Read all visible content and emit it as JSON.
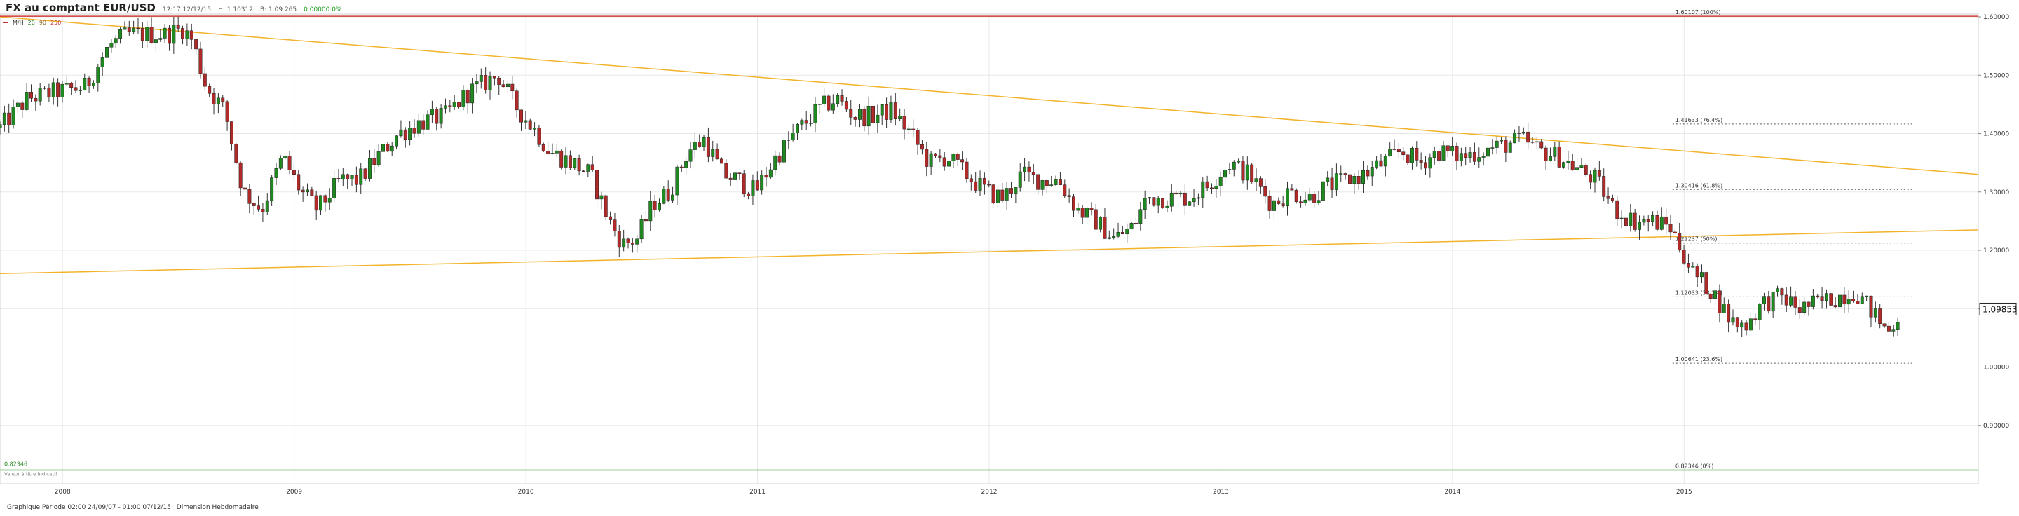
{
  "header": {
    "title": "FX au comptant EUR/USD",
    "time": "12:17 12/12/15",
    "high": "H: 1.10312",
    "bid": "B: 1.09 265",
    "change": "0.00000 0%"
  },
  "legend": {
    "label": "M/H",
    "p1": "20",
    "p2": "90",
    "p3": "250"
  },
  "footer": {
    "period": "Graphique Période 02:00 24/09/07 - 01:00 07/12/15",
    "dimension": "Dimension Hebdomadaire"
  },
  "colors": {
    "up": "#1f8a1f",
    "down": "#b02a2a",
    "trend": "#f2b32a",
    "top_line": "#d43a3a",
    "bottom_line": "#3aa23a",
    "grid": "#e8e8e8"
  },
  "chart_data": {
    "type": "candlestick",
    "title": "FX au comptant EUR/USD",
    "ylim": [
      0.8,
      1.6
    ],
    "y_ticks": [
      "1.60000",
      "1.50000",
      "1.40000",
      "1.30000",
      "1.20000",
      "1.10000",
      "1.00000",
      "0.90000"
    ],
    "x_ticks": [
      "2008",
      "2009",
      "2010",
      "2011",
      "2012",
      "2013",
      "2014",
      "2015"
    ],
    "x_ticks_year": [
      2008,
      2009,
      2010,
      2011,
      2012,
      2013,
      2014,
      2015
    ],
    "x_range": [
      2007.73,
      2016.27
    ],
    "last_price": "1.09853",
    "last_value": 1.09853,
    "fibonacci": [
      {
        "value": 1.60107,
        "label": "1.60107 (100%)",
        "start": 2014.95,
        "solid": true
      },
      {
        "value": 1.41633,
        "label": "1.41633 (76.4%)",
        "start": 2014.95
      },
      {
        "value": 1.30416,
        "label": "1.30416 (61.8%)",
        "start": 2014.95
      },
      {
        "value": 1.21237,
        "label": "1.21237 (50%)",
        "start": 2014.95
      },
      {
        "value": 1.12033,
        "label": "1.12033 (38.2%)",
        "start": 2014.95
      },
      {
        "value": 1.00641,
        "label": "1.00641 (23.6%)",
        "start": 2014.95
      },
      {
        "value": 0.82346,
        "label": "0.82346 (0%)",
        "start": 2014.95,
        "solid": true
      }
    ],
    "trendlines": [
      {
        "x1": 2007.73,
        "y1": 1.6,
        "x2": 2016.27,
        "y2": 1.33
      },
      {
        "x1": 2007.73,
        "y1": 1.16,
        "x2": 2016.27,
        "y2": 1.235
      }
    ],
    "top_line": {
      "value": 1.60107
    },
    "bottom_line": {
      "value": 0.82346,
      "label": "0.82346",
      "note": "Valeur à titre indicatif"
    },
    "path": [
      [
        2007.73,
        1.41
      ],
      [
        2007.85,
        1.46
      ],
      [
        2007.95,
        1.47
      ],
      [
        2008.1,
        1.48
      ],
      [
        2008.2,
        1.55
      ],
      [
        2008.28,
        1.57
      ],
      [
        2008.35,
        1.57
      ],
      [
        2008.45,
        1.57
      ],
      [
        2008.52,
        1.58
      ],
      [
        2008.56,
        1.56
      ],
      [
        2008.62,
        1.48
      ],
      [
        2008.7,
        1.44
      ],
      [
        2008.78,
        1.3
      ],
      [
        2008.86,
        1.27
      ],
      [
        2008.95,
        1.36
      ],
      [
        2009.03,
        1.3
      ],
      [
        2009.1,
        1.27
      ],
      [
        2009.2,
        1.32
      ],
      [
        2009.28,
        1.32
      ],
      [
        2009.36,
        1.36
      ],
      [
        2009.45,
        1.4
      ],
      [
        2009.55,
        1.42
      ],
      [
        2009.65,
        1.43
      ],
      [
        2009.75,
        1.47
      ],
      [
        2009.88,
        1.5
      ],
      [
        2009.95,
        1.45
      ],
      [
        2010.05,
        1.4
      ],
      [
        2010.1,
        1.37
      ],
      [
        2010.2,
        1.35
      ],
      [
        2010.28,
        1.33
      ],
      [
        2010.36,
        1.25
      ],
      [
        2010.42,
        1.21
      ],
      [
        2010.48,
        1.22
      ],
      [
        2010.55,
        1.28
      ],
      [
        2010.62,
        1.3
      ],
      [
        2010.7,
        1.37
      ],
      [
        2010.77,
        1.39
      ],
      [
        2010.85,
        1.33
      ],
      [
        2010.92,
        1.32
      ],
      [
        2010.99,
        1.3
      ],
      [
        2011.08,
        1.36
      ],
      [
        2011.16,
        1.4
      ],
      [
        2011.26,
        1.44
      ],
      [
        2011.34,
        1.46
      ],
      [
        2011.42,
        1.43
      ],
      [
        2011.5,
        1.43
      ],
      [
        2011.58,
        1.44
      ],
      [
        2011.66,
        1.4
      ],
      [
        2011.74,
        1.35
      ],
      [
        2011.82,
        1.36
      ],
      [
        2011.9,
        1.33
      ],
      [
        2011.99,
        1.3
      ],
      [
        2012.06,
        1.29
      ],
      [
        2012.14,
        1.33
      ],
      [
        2012.22,
        1.32
      ],
      [
        2012.3,
        1.32
      ],
      [
        2012.38,
        1.27
      ],
      [
        2012.46,
        1.25
      ],
      [
        2012.54,
        1.22
      ],
      [
        2012.62,
        1.24
      ],
      [
        2012.68,
        1.29
      ],
      [
        2012.78,
        1.29
      ],
      [
        2012.86,
        1.29
      ],
      [
        2012.94,
        1.31
      ],
      [
        2013.04,
        1.35
      ],
      [
        2013.12,
        1.33
      ],
      [
        2013.22,
        1.28
      ],
      [
        2013.3,
        1.3
      ],
      [
        2013.38,
        1.29
      ],
      [
        2013.46,
        1.31
      ],
      [
        2013.54,
        1.32
      ],
      [
        2013.62,
        1.33
      ],
      [
        2013.7,
        1.35
      ],
      [
        2013.78,
        1.37
      ],
      [
        2013.86,
        1.35
      ],
      [
        2013.94,
        1.37
      ],
      [
        2014.04,
        1.36
      ],
      [
        2014.12,
        1.37
      ],
      [
        2014.22,
        1.38
      ],
      [
        2014.3,
        1.39
      ],
      [
        2014.38,
        1.37
      ],
      [
        2014.46,
        1.36
      ],
      [
        2014.54,
        1.34
      ],
      [
        2014.62,
        1.32
      ],
      [
        2014.7,
        1.27
      ],
      [
        2014.78,
        1.25
      ],
      [
        2014.86,
        1.25
      ],
      [
        2014.94,
        1.24
      ],
      [
        2015.04,
        1.16
      ],
      [
        2015.12,
        1.13
      ],
      [
        2015.2,
        1.08
      ],
      [
        2015.26,
        1.07
      ],
      [
        2015.34,
        1.11
      ],
      [
        2015.42,
        1.12
      ],
      [
        2015.5,
        1.1
      ],
      [
        2015.58,
        1.11
      ],
      [
        2015.66,
        1.12
      ],
      [
        2015.74,
        1.13
      ],
      [
        2015.82,
        1.09
      ],
      [
        2015.88,
        1.06
      ],
      [
        2015.94,
        1.09853
      ]
    ]
  }
}
